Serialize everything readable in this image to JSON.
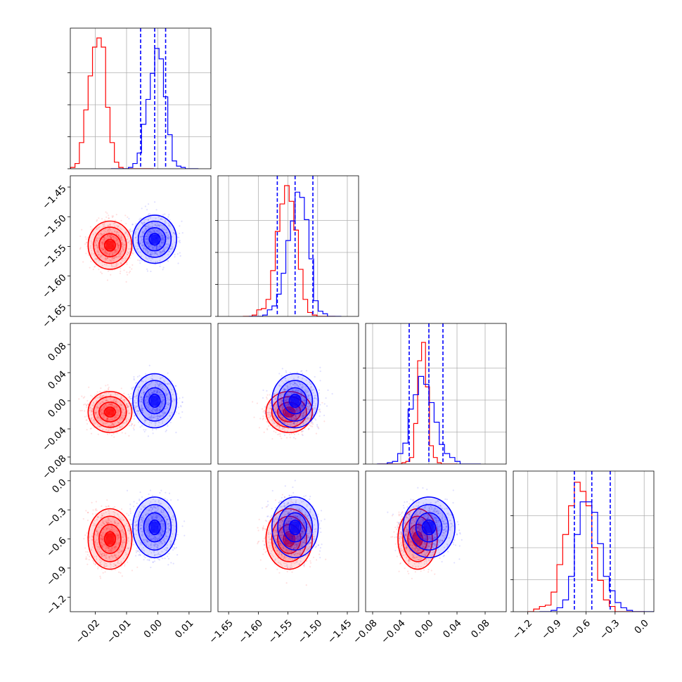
{
  "chart_data": {
    "type": "corner",
    "series": [
      {
        "color": "#ff0000",
        "mean": [
          -0.0153,
          -1.548,
          -0.016,
          -0.6
        ],
        "std": [
          0.0035,
          0.0195,
          0.014,
          0.15
        ],
        "hist": [
          [
            0.0,
            0.01,
            0.04,
            0.2,
            0.45,
            0.71,
            0.93,
            1.0,
            0.93,
            0.47,
            0.2,
            0.05,
            0.01,
            0.0,
            0.0,
            0.0,
            0.0,
            0.0,
            0.0,
            0.0
          ],
          [
            0.0,
            0.0,
            0.01,
            0.05,
            0.06,
            0.13,
            0.35,
            0.65,
            0.86,
            1.0,
            0.88,
            0.66,
            0.36,
            0.13,
            0.03,
            0.01,
            0.0,
            0.0,
            0.0,
            0.0
          ],
          [
            0.0,
            0.0,
            0.0,
            0.0,
            0.0,
            0.0,
            0.01,
            0.02,
            0.05,
            0.31,
            0.79,
            0.93,
            0.59,
            0.14,
            0.05,
            0.01,
            0.0,
            0.0,
            0.0,
            0.0
          ],
          [
            0.0,
            0.02,
            0.04,
            0.05,
            0.15,
            0.36,
            0.59,
            0.81,
            0.99,
            0.92,
            0.81,
            0.49,
            0.24,
            0.09,
            0.04,
            0.0,
            0.0,
            0.0,
            0.0,
            0.0
          ]
        ],
        "quantiles": null
      },
      {
        "color": "#0000ff",
        "mean": [
          -0.001,
          -1.538,
          0.0,
          -0.48
        ],
        "std": [
          0.0035,
          0.0195,
          0.0185,
          0.15
        ],
        "hist": [
          [
            0.0,
            0.0,
            0.0,
            0.0,
            0.01,
            0.04,
            0.12,
            0.34,
            0.53,
            0.73,
            0.92,
            0.84,
            0.55,
            0.26,
            0.06,
            0.02,
            0.01,
            0.0,
            0.0,
            0.0
          ],
          [
            0.0,
            0.0,
            0.0,
            0.01,
            0.05,
            0.08,
            0.17,
            0.33,
            0.58,
            0.73,
            0.95,
            0.91,
            0.74,
            0.44,
            0.12,
            0.04,
            0.02,
            0.0,
            0.0,
            0.0
          ],
          [
            0.0,
            0.0,
            0.01,
            0.02,
            0.08,
            0.16,
            0.42,
            0.53,
            0.67,
            0.61,
            0.47,
            0.32,
            0.15,
            0.08,
            0.05,
            0.02,
            0.0,
            0.0,
            0.0,
            0.0
          ],
          [
            0.0,
            0.0,
            0.01,
            0.03,
            0.09,
            0.27,
            0.59,
            0.84,
            0.84,
            0.76,
            0.52,
            0.27,
            0.16,
            0.07,
            0.03,
            0.01,
            0.0,
            0.0,
            0.0,
            0.0
          ]
        ],
        "quantiles": [
          [
            -0.0055,
            -0.001,
            0.0025
          ],
          [
            -1.568,
            -1.538,
            -1.508
          ],
          [
            -0.028,
            0.0,
            0.02
          ],
          [
            -0.72,
            -0.54,
            -0.35
          ]
        ]
      }
    ],
    "params": [
      {
        "range": [
          -0.028,
          0.017
        ],
        "ticks": [
          -0.02,
          -0.01,
          0.0,
          0.01
        ],
        "tick_labels": [
          "−0.02",
          "−0.01",
          "0.00",
          "0.01"
        ]
      },
      {
        "range": [
          -1.668,
          -1.431
        ],
        "ticks": [
          -1.65,
          -1.6,
          -1.55,
          -1.5,
          -1.45
        ],
        "tick_labels": [
          "−1.65",
          "−1.60",
          "−1.55",
          "−1.50",
          "−1.45"
        ]
      },
      {
        "range": [
          -0.09,
          0.11
        ],
        "ticks": [
          -0.08,
          -0.04,
          0.0,
          0.04,
          0.08
        ],
        "tick_labels": [
          "−0.08",
          "−0.04",
          "0.00",
          "0.04",
          "0.08"
        ]
      },
      {
        "range": [
          -1.35,
          0.1
        ],
        "ticks": [
          -1.2,
          -0.9,
          -0.6,
          -0.3,
          0.0
        ],
        "tick_labels": [
          "−1.2",
          "−0.9",
          "−0.6",
          "−0.3",
          "0.0"
        ]
      }
    ],
    "grid": true,
    "legend": null,
    "title": "",
    "axis_labels": []
  }
}
